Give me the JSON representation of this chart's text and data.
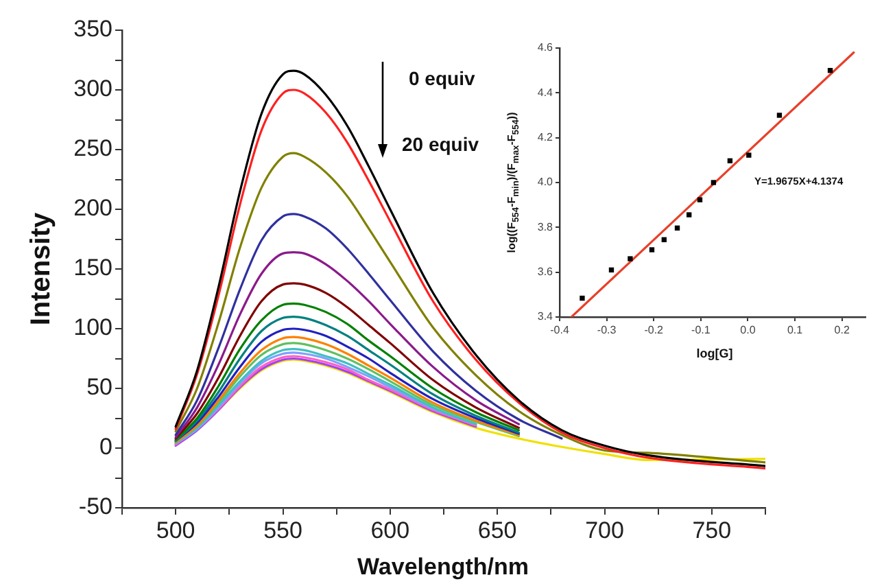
{
  "chart_data": [
    {
      "type": "line",
      "xlabel": "Wavelength/nm",
      "ylabel": "Intensity",
      "annotations": [
        "0 equiv",
        "20 equiv"
      ],
      "xlim": [
        475,
        775
      ],
      "ylim": [
        -50,
        350
      ],
      "xticks": [
        {
          "value": 475,
          "label": null
        },
        500,
        {
          "value": 525,
          "label": null
        },
        550,
        {
          "value": 575,
          "label": null
        },
        600,
        {
          "value": 625,
          "label": null
        },
        650,
        {
          "value": 675,
          "label": null
        },
        700,
        {
          "value": 725,
          "label": null
        },
        750,
        {
          "value": 775,
          "label": null
        }
      ],
      "yticks": [
        -50,
        {
          "value": -25,
          "label": null
        },
        0,
        {
          "value": 25,
          "label": null
        },
        50,
        {
          "value": 75,
          "label": null
        },
        100,
        {
          "value": 125,
          "label": null
        },
        150,
        {
          "value": 175,
          "label": null
        },
        200,
        {
          "value": 225,
          "label": null
        },
        250,
        {
          "value": 275,
          "label": null
        },
        300,
        {
          "value": 325,
          "label": null
        },
        350
      ],
      "grid": false,
      "legend": false,
      "x": [
        500,
        510,
        520,
        530,
        540,
        550,
        555,
        560,
        570,
        580,
        590,
        600,
        620,
        640,
        660,
        680,
        700,
        720,
        775
      ],
      "series": [
        {
          "color": "#000000",
          "values": [
            18,
            65,
            135,
            215,
            280,
            313,
            316,
            313,
            296,
            270,
            236,
            200,
            130,
            78,
            40,
            15,
            2,
            -6,
            -15
          ]
        },
        {
          "color": "#ff2020",
          "values": [
            16,
            62,
            128,
            204,
            266,
            297,
            300,
            297,
            281,
            256,
            224,
            190,
            123,
            74,
            38,
            13,
            0,
            -8,
            -17
          ]
        },
        {
          "color": "#808000",
          "values": [
            14,
            50,
            105,
            168,
            218,
            244,
            247,
            244,
            231,
            211,
            184,
            156,
            101,
            61,
            31,
            11,
            -2,
            -4,
            -12
          ]
        },
        {
          "color": "#3030a0",
          "values": [
            11,
            40,
            84,
            133,
            174,
            194,
            196,
            194,
            184,
            167,
            146,
            124,
            81,
            48,
            24,
            8,
            null,
            null,
            null
          ]
        },
        {
          "color": "#8b1a8b",
          "values": [
            9,
            34,
            70,
            112,
            146,
            163,
            164,
            163,
            154,
            140,
            123,
            104,
            68,
            40,
            20,
            null,
            null,
            null,
            null
          ]
        },
        {
          "color": "#800000",
          "values": [
            8,
            29,
            59,
            94,
            123,
            137,
            138,
            137,
            130,
            118,
            103,
            88,
            57,
            34,
            17,
            null,
            null,
            null,
            null
          ]
        },
        {
          "color": "#008000",
          "values": [
            7,
            25,
            52,
            83,
            107,
            120,
            121,
            120,
            114,
            104,
            90,
            77,
            50,
            30,
            15,
            null,
            null,
            null,
            null
          ]
        },
        {
          "color": "#008080",
          "values": [
            6,
            23,
            47,
            75,
            98,
            109,
            110,
            109,
            103,
            94,
            82,
            70,
            45,
            27,
            13,
            null,
            null,
            null,
            null
          ]
        },
        {
          "color": "#2020c0",
          "values": [
            6,
            21,
            43,
            68,
            89,
            99,
            100,
            99,
            94,
            85,
            75,
            63,
            41,
            25,
            12,
            null,
            null,
            null,
            null
          ]
        },
        {
          "color": "#ff8000",
          "values": [
            5,
            19,
            40,
            63,
            82,
            92,
            93,
            92,
            87,
            79,
            69,
            59,
            38,
            23,
            11,
            null,
            null,
            null,
            null
          ]
        },
        {
          "color": "#60c060",
          "values": [
            5,
            18,
            38,
            60,
            78,
            87,
            88,
            87,
            82,
            75,
            66,
            56,
            36,
            22,
            10,
            null,
            null,
            null,
            null
          ]
        },
        {
          "color": "#40c0c0",
          "values": [
            4,
            17,
            36,
            56,
            73,
            82,
            83,
            82,
            77,
            71,
            62,
            53,
            34,
            20,
            null,
            null,
            null,
            null,
            null
          ]
        },
        {
          "color": "#80a0ff",
          "values": [
            4,
            16,
            34,
            54,
            71,
            79,
            80,
            79,
            75,
            68,
            60,
            51,
            33,
            20,
            null,
            null,
            null,
            null,
            null
          ]
        },
        {
          "color": "#ff60c0",
          "values": [
            3,
            16,
            33,
            52,
            68,
            76,
            77,
            76,
            72,
            66,
            57,
            49,
            32,
            19,
            null,
            null,
            null,
            null,
            null
          ]
        },
        {
          "color": "#a040ff",
          "values": [
            2,
            15,
            32,
            51,
            66,
            74,
            75,
            74,
            70,
            64,
            56,
            48,
            31,
            18,
            null,
            null,
            null,
            null,
            null
          ]
        },
        {
          "color": "#f0e000",
          "values": [
            3,
            15,
            32,
            50,
            65,
            73,
            74,
            73,
            69,
            63,
            55,
            47,
            30,
            17,
            8,
            1,
            -5,
            -10,
            -9
          ]
        }
      ]
    },
    {
      "type": "scatter",
      "xlabel": "log[G]",
      "ylabel": "log((F$_{554}$-F$_{min}$)/(F$_{max}$-F$_{554}$))",
      "annotations": [
        "Y=1.9675X+4.1374"
      ],
      "xlim": [
        -0.4,
        0.25
      ],
      "ylim": [
        3.4,
        4.6
      ],
      "xticks": [
        -0.4,
        -0.3,
        -0.2,
        -0.1,
        {
          "value": 0,
          "label": "0.0"
        },
        0.1,
        0.2
      ],
      "yticks": [
        3.4,
        3.6,
        3.8,
        {
          "value": 4,
          "label": "4.0"
        },
        4.2,
        4.4,
        4.6
      ],
      "grid": false,
      "legend": false,
      "marker": "square",
      "series": [
        {
          "type": "scatter",
          "color": "#000000",
          "x": [
            -0.352,
            -0.29,
            -0.25,
            -0.204,
            -0.178,
            -0.15,
            -0.125,
            -0.102,
            -0.073,
            -0.038,
            0.002,
            0.067,
            0.175
          ],
          "values": [
            3.484,
            3.61,
            3.66,
            3.7,
            3.745,
            3.797,
            3.856,
            3.923,
            4.0,
            4.097,
            4.122,
            4.3,
            4.5
          ]
        },
        {
          "type": "line",
          "marker": "none",
          "color": "#e8402a",
          "x": [
            -0.375,
            0.225
          ],
          "values": [
            3.4,
            4.58
          ]
        }
      ]
    }
  ]
}
